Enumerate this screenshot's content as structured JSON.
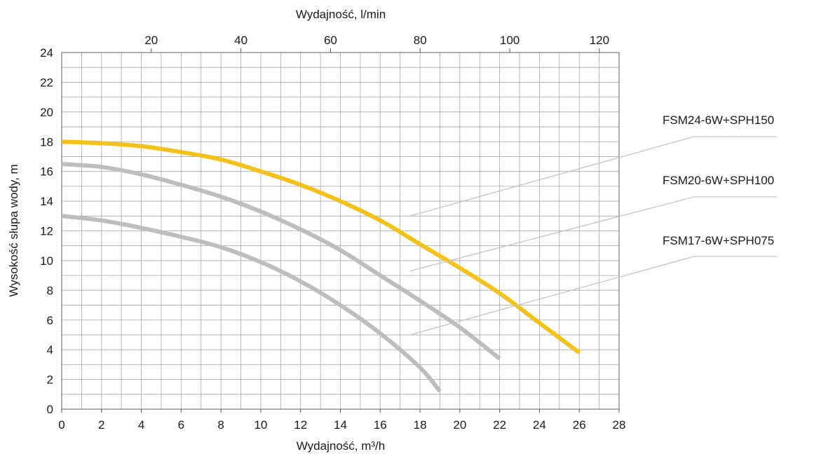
{
  "chart_data": {
    "type": "line",
    "xlabel": "Wydajność, m³/h",
    "x2label": "Wydajność, l/min",
    "ylabel": "Wysokość słupa wody, m",
    "xlim": [
      0,
      28
    ],
    "ylim": [
      0,
      24
    ],
    "x2lim": [
      0,
      124.4
    ],
    "x_ticks": [
      "0",
      "2",
      "4",
      "6",
      "8",
      "10",
      "12",
      "14",
      "16",
      "18",
      "20",
      "22",
      "24",
      "26",
      "28"
    ],
    "x2_ticks": [
      "20",
      "40",
      "60",
      "80",
      "100",
      "120"
    ],
    "y_ticks": [
      "0",
      "2",
      "4",
      "6",
      "8",
      "10",
      "12",
      "14",
      "16",
      "18",
      "20",
      "22",
      "24"
    ],
    "grid": true,
    "legend_placement": "right",
    "series": [
      {
        "name": "FSM24-6W+SPH150",
        "color": "#f2c21a",
        "x": [
          0,
          2,
          4,
          6,
          8,
          10,
          12,
          14,
          16,
          18,
          20,
          22,
          24,
          26
        ],
        "y": [
          18.0,
          17.9,
          17.7,
          17.3,
          16.8,
          16.0,
          15.1,
          14.0,
          12.7,
          11.1,
          9.5,
          7.8,
          5.8,
          3.8
        ],
        "legend_anchor": {
          "x": 17.5,
          "y": 13.0
        }
      },
      {
        "name": "FSM20-6W+SPH100",
        "color": "#bdbdbd",
        "x": [
          0,
          2,
          4,
          6,
          8,
          10,
          12,
          14,
          16,
          18,
          20,
          22
        ],
        "y": [
          16.5,
          16.3,
          15.8,
          15.1,
          14.3,
          13.3,
          12.1,
          10.7,
          9.0,
          7.3,
          5.5,
          3.4
        ],
        "legend_anchor": {
          "x": 17.5,
          "y": 9.3
        }
      },
      {
        "name": "FSM17-6W+SPH075",
        "color": "#bdbdbd",
        "x": [
          0,
          2,
          4,
          6,
          8,
          10,
          12,
          14,
          16,
          18,
          19
        ],
        "y": [
          13.0,
          12.7,
          12.2,
          11.6,
          10.9,
          9.9,
          8.6,
          7.0,
          5.1,
          2.8,
          1.2
        ],
        "legend_anchor": {
          "x": 17.5,
          "y": 5.0
        }
      }
    ]
  }
}
